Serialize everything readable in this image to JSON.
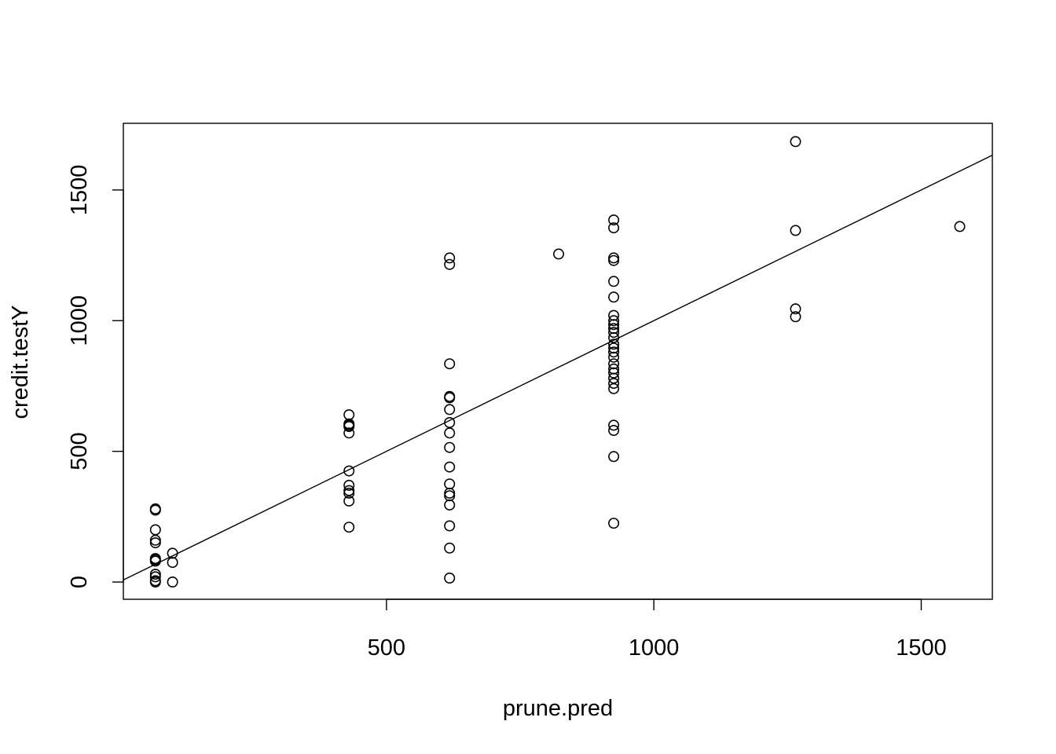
{
  "chart_data": {
    "type": "scatter",
    "title": "",
    "xlabel": "prune.pred",
    "ylabel": "credit.testY",
    "xlim": [
      8,
      1633
    ],
    "ylim": [
      -66,
      1755
    ],
    "x_ticks": [
      500,
      1000,
      1500
    ],
    "y_ticks": [
      0,
      500,
      1000,
      1500
    ],
    "x_tick_labels": [
      "500",
      "1000",
      "1500"
    ],
    "y_tick_labels": [
      "0",
      "500",
      "1000",
      "1500"
    ],
    "grid": false,
    "legend": "none",
    "reference_line": {
      "intercept": 0,
      "slope": 1
    },
    "points": [
      {
        "x": 68,
        "y": 275
      },
      {
        "x": 68,
        "y": 280
      },
      {
        "x": 68,
        "y": 200
      },
      {
        "x": 68,
        "y": 160
      },
      {
        "x": 68,
        "y": 150
      },
      {
        "x": 68,
        "y": 90
      },
      {
        "x": 68,
        "y": 85
      },
      {
        "x": 68,
        "y": 80
      },
      {
        "x": 68,
        "y": 30
      },
      {
        "x": 68,
        "y": 20
      },
      {
        "x": 68,
        "y": 5
      },
      {
        "x": 68,
        "y": 0
      },
      {
        "x": 100,
        "y": 110
      },
      {
        "x": 100,
        "y": 75
      },
      {
        "x": 100,
        "y": 0
      },
      {
        "x": 430,
        "y": 640
      },
      {
        "x": 430,
        "y": 605
      },
      {
        "x": 430,
        "y": 600
      },
      {
        "x": 430,
        "y": 595
      },
      {
        "x": 430,
        "y": 570
      },
      {
        "x": 430,
        "y": 425
      },
      {
        "x": 430,
        "y": 370
      },
      {
        "x": 430,
        "y": 350
      },
      {
        "x": 430,
        "y": 340
      },
      {
        "x": 430,
        "y": 310
      },
      {
        "x": 430,
        "y": 210
      },
      {
        "x": 618,
        "y": 1240
      },
      {
        "x": 618,
        "y": 1215
      },
      {
        "x": 618,
        "y": 835
      },
      {
        "x": 618,
        "y": 710
      },
      {
        "x": 618,
        "y": 705
      },
      {
        "x": 618,
        "y": 660
      },
      {
        "x": 618,
        "y": 610
      },
      {
        "x": 618,
        "y": 570
      },
      {
        "x": 618,
        "y": 515
      },
      {
        "x": 618,
        "y": 440
      },
      {
        "x": 618,
        "y": 375
      },
      {
        "x": 618,
        "y": 340
      },
      {
        "x": 618,
        "y": 330
      },
      {
        "x": 618,
        "y": 295
      },
      {
        "x": 618,
        "y": 215
      },
      {
        "x": 618,
        "y": 130
      },
      {
        "x": 618,
        "y": 15
      },
      {
        "x": 822,
        "y": 1255
      },
      {
        "x": 925,
        "y": 1385
      },
      {
        "x": 925,
        "y": 1355
      },
      {
        "x": 925,
        "y": 1240
      },
      {
        "x": 925,
        "y": 1230
      },
      {
        "x": 925,
        "y": 1150
      },
      {
        "x": 925,
        "y": 1090
      },
      {
        "x": 925,
        "y": 1020
      },
      {
        "x": 925,
        "y": 1000
      },
      {
        "x": 925,
        "y": 985
      },
      {
        "x": 925,
        "y": 970
      },
      {
        "x": 925,
        "y": 955
      },
      {
        "x": 925,
        "y": 935
      },
      {
        "x": 925,
        "y": 910
      },
      {
        "x": 925,
        "y": 895
      },
      {
        "x": 925,
        "y": 880
      },
      {
        "x": 925,
        "y": 860
      },
      {
        "x": 925,
        "y": 835
      },
      {
        "x": 925,
        "y": 815
      },
      {
        "x": 925,
        "y": 800
      },
      {
        "x": 925,
        "y": 780
      },
      {
        "x": 925,
        "y": 760
      },
      {
        "x": 925,
        "y": 740
      },
      {
        "x": 925,
        "y": 600
      },
      {
        "x": 925,
        "y": 580
      },
      {
        "x": 925,
        "y": 480
      },
      {
        "x": 925,
        "y": 225
      },
      {
        "x": 1265,
        "y": 1685
      },
      {
        "x": 1265,
        "y": 1345
      },
      {
        "x": 1265,
        "y": 1045
      },
      {
        "x": 1265,
        "y": 1015
      },
      {
        "x": 1572,
        "y": 1360
      }
    ]
  }
}
